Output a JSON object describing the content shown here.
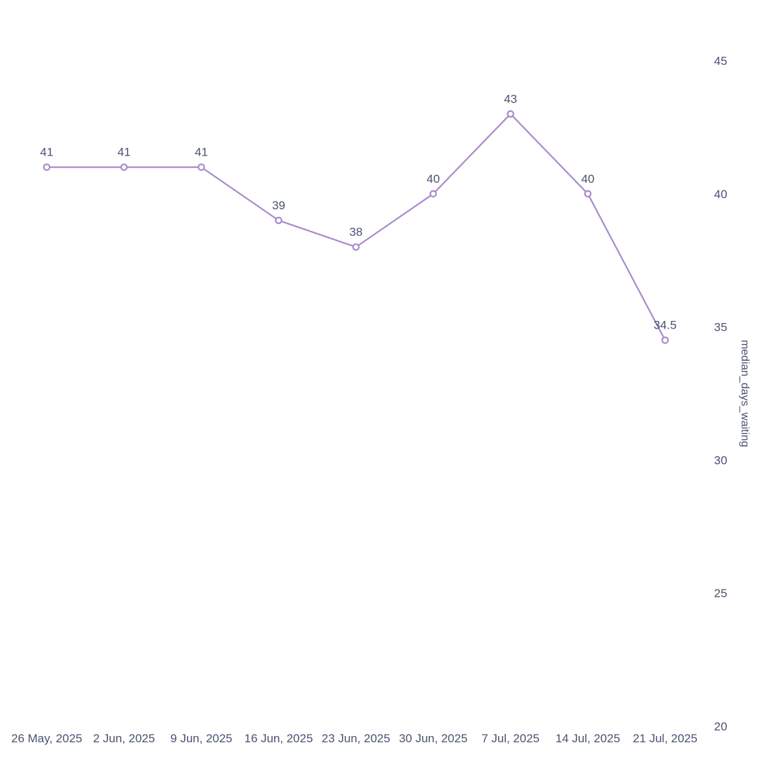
{
  "chart_data": {
    "type": "line",
    "x": [
      "26 May, 2025",
      "2 Jun, 2025",
      "9 Jun, 2025",
      "16 Jun, 2025",
      "23 Jun, 2025",
      "30 Jun, 2025",
      "7 Jul, 2025",
      "14 Jul, 2025",
      "21 Jul, 2025"
    ],
    "series": [
      {
        "values": [
          41,
          41,
          41,
          39,
          38,
          40,
          43,
          40,
          34.5
        ],
        "labels": [
          "41",
          "41",
          "41",
          "39",
          "38",
          "40",
          "43",
          "40",
          "34.5"
        ],
        "color": "#a98bcc"
      }
    ],
    "ylabel": "median_days_waiting",
    "yaxis_position": "right",
    "ylim": [
      20,
      45
    ],
    "yticks": [
      20,
      25,
      30,
      35,
      40,
      45
    ],
    "grid": false,
    "legend": "none"
  }
}
